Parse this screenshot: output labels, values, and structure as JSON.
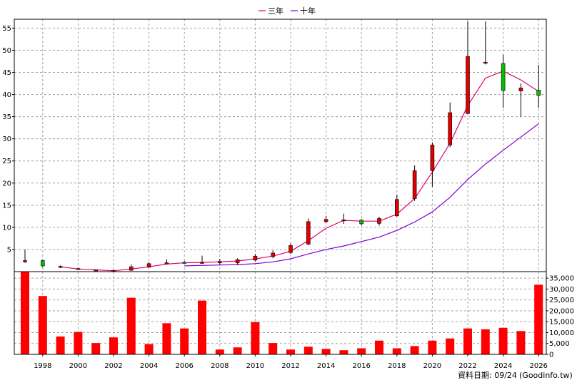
{
  "chart_data": {
    "type": "candlestick",
    "legend": [
      {
        "name": "三年",
        "color": "#e0006e"
      },
      {
        "name": "十年",
        "color": "#7a00d8"
      }
    ],
    "x_ticks": [
      "1998",
      "2000",
      "2002",
      "2004",
      "2006",
      "2008",
      "2010",
      "2012",
      "2014",
      "2016",
      "2018",
      "2020",
      "2022",
      "2024",
      "2026"
    ],
    "price_axis": {
      "ylim": [
        0,
        57
      ],
      "ticks": [
        5,
        10,
        15,
        20,
        25,
        30,
        35,
        40,
        45,
        50,
        55
      ]
    },
    "volume_axis": {
      "ylim": [
        0,
        38000
      ],
      "ticks": [
        0,
        5000,
        10000,
        15000,
        20000,
        25000,
        30000,
        35000
      ],
      "tick_labels": [
        "0",
        "5,000",
        "10,000",
        "15,000",
        "20,000",
        "25,000",
        "30,000",
        "35,000"
      ]
    },
    "colors": {
      "up": "#e00000",
      "down": "#00c000",
      "volume": "#ff0000",
      "grid": "#a0a0a0"
    },
    "candles": [
      {
        "year": 1997,
        "open": 2.2,
        "close": 2.5,
        "high": 5.0,
        "low": 2.0
      },
      {
        "year": 1998,
        "open": 2.5,
        "close": 1.3,
        "high": 2.7,
        "low": 1.0
      },
      {
        "year": 1999,
        "open": 1.0,
        "close": 1.2,
        "high": 1.4,
        "low": 0.8
      },
      {
        "year": 2000,
        "open": 0.6,
        "close": 0.7,
        "high": 0.9,
        "low": 0.5
      },
      {
        "year": 2001,
        "open": 0.3,
        "close": 0.4,
        "high": 0.5,
        "low": 0.2
      },
      {
        "year": 2002,
        "open": 0.2,
        "close": 0.3,
        "high": 0.4,
        "low": 0.1
      },
      {
        "year": 2003,
        "open": 0.3,
        "close": 1.1,
        "high": 1.6,
        "low": 0.2
      },
      {
        "year": 2004,
        "open": 1.0,
        "close": 1.8,
        "high": 2.2,
        "low": 0.9
      },
      {
        "year": 2005,
        "open": 1.9,
        "close": 2.0,
        "high": 2.8,
        "low": 1.7
      },
      {
        "year": 2006,
        "open": 2.1,
        "close": 2.0,
        "high": 2.4,
        "low": 1.9
      },
      {
        "year": 2007,
        "open": 2.0,
        "close": 2.1,
        "high": 3.6,
        "low": 1.8
      },
      {
        "year": 2008,
        "open": 2.0,
        "close": 2.3,
        "high": 2.9,
        "low": 1.5
      },
      {
        "year": 2009,
        "open": 2.0,
        "close": 2.7,
        "high": 3.0,
        "low": 1.5
      },
      {
        "year": 2010,
        "open": 2.6,
        "close": 3.5,
        "high": 4.0,
        "low": 2.3
      },
      {
        "year": 2011,
        "open": 3.4,
        "close": 4.2,
        "high": 4.8,
        "low": 3.0
      },
      {
        "year": 2012,
        "open": 4.3,
        "close": 5.9,
        "high": 6.4,
        "low": 4.0
      },
      {
        "year": 2013,
        "open": 6.2,
        "close": 11.3,
        "high": 12.0,
        "low": 6.0
      },
      {
        "year": 2014,
        "open": 11.3,
        "close": 11.8,
        "high": 12.6,
        "low": 10.9
      },
      {
        "year": 2015,
        "open": 11.6,
        "close": 11.7,
        "high": 13.1,
        "low": 10.8
      },
      {
        "year": 2016,
        "open": 11.6,
        "close": 10.8,
        "high": 11.9,
        "low": 10.5
      },
      {
        "year": 2017,
        "open": 10.9,
        "close": 12.0,
        "high": 12.4,
        "low": 10.4
      },
      {
        "year": 2018,
        "open": 12.6,
        "close": 16.3,
        "high": 17.4,
        "low": 12.4
      },
      {
        "year": 2019,
        "open": 16.5,
        "close": 22.8,
        "high": 24.0,
        "low": 16.0
      },
      {
        "year": 2020,
        "open": 22.8,
        "close": 28.6,
        "high": 29.2,
        "low": 19.2
      },
      {
        "year": 2021,
        "open": 28.6,
        "close": 35.9,
        "high": 38.2,
        "low": 28.1
      },
      {
        "year": 2022,
        "open": 35.7,
        "close": 48.6,
        "high": 56.5,
        "low": 35.6
      },
      {
        "year": 2023,
        "open": 47.1,
        "close": 47.3,
        "high": 56.5,
        "low": 46.8
      },
      {
        "year": 2024,
        "open": 47.0,
        "close": 40.9,
        "high": 49.0,
        "low": 37.0
      },
      {
        "year": 2025,
        "open": 40.8,
        "close": 41.5,
        "high": 42.5,
        "low": 35.0
      },
      {
        "year": 2026,
        "open": 41.0,
        "close": 39.8,
        "high": 46.7,
        "low": 37.0
      }
    ],
    "ma3": [
      {
        "year": 1999,
        "value": 1.1
      },
      {
        "year": 2000,
        "value": 0.6
      },
      {
        "year": 2001,
        "value": 0.4
      },
      {
        "year": 2002,
        "value": 0.2
      },
      {
        "year": 2003,
        "value": 0.6
      },
      {
        "year": 2004,
        "value": 1.1
      },
      {
        "year": 2005,
        "value": 1.7
      },
      {
        "year": 2006,
        "value": 2.0
      },
      {
        "year": 2007,
        "value": 2.1
      },
      {
        "year": 2008,
        "value": 2.2
      },
      {
        "year": 2009,
        "value": 2.4
      },
      {
        "year": 2010,
        "value": 2.9
      },
      {
        "year": 2011,
        "value": 3.5
      },
      {
        "year": 2012,
        "value": 4.6
      },
      {
        "year": 2013,
        "value": 7.0
      },
      {
        "year": 2014,
        "value": 9.8
      },
      {
        "year": 2015,
        "value": 11.6
      },
      {
        "year": 2016,
        "value": 11.4
      },
      {
        "year": 2017,
        "value": 11.4
      },
      {
        "year": 2018,
        "value": 13.0
      },
      {
        "year": 2019,
        "value": 16.5
      },
      {
        "year": 2020,
        "value": 22.5
      },
      {
        "year": 2021,
        "value": 29.0
      },
      {
        "year": 2022,
        "value": 37.5
      },
      {
        "year": 2023,
        "value": 43.7
      },
      {
        "year": 2024,
        "value": 45.3
      },
      {
        "year": 2025,
        "value": 43.3
      },
      {
        "year": 2026,
        "value": 40.7
      }
    ],
    "ma10": [
      {
        "year": 2006,
        "value": 1.3
      },
      {
        "year": 2007,
        "value": 1.4
      },
      {
        "year": 2008,
        "value": 1.5
      },
      {
        "year": 2009,
        "value": 1.6
      },
      {
        "year": 2010,
        "value": 1.8
      },
      {
        "year": 2011,
        "value": 2.2
      },
      {
        "year": 2012,
        "value": 2.9
      },
      {
        "year": 2013,
        "value": 4.0
      },
      {
        "year": 2014,
        "value": 5.0
      },
      {
        "year": 2015,
        "value": 5.8
      },
      {
        "year": 2016,
        "value": 6.8
      },
      {
        "year": 2017,
        "value": 7.8
      },
      {
        "year": 2018,
        "value": 9.3
      },
      {
        "year": 2019,
        "value": 11.2
      },
      {
        "year": 2020,
        "value": 13.5
      },
      {
        "year": 2021,
        "value": 16.8
      },
      {
        "year": 2022,
        "value": 20.8
      },
      {
        "year": 2023,
        "value": 24.3
      },
      {
        "year": 2024,
        "value": 27.4
      },
      {
        "year": 2025,
        "value": 30.4
      },
      {
        "year": 2026,
        "value": 33.4
      }
    ],
    "volume": [
      {
        "year": 1997,
        "value": 38000
      },
      {
        "year": 1998,
        "value": 26800
      },
      {
        "year": 1999,
        "value": 8200
      },
      {
        "year": 2000,
        "value": 10300
      },
      {
        "year": 2001,
        "value": 5200
      },
      {
        "year": 2002,
        "value": 7800
      },
      {
        "year": 2003,
        "value": 26000
      },
      {
        "year": 2004,
        "value": 4700
      },
      {
        "year": 2005,
        "value": 14300
      },
      {
        "year": 2006,
        "value": 11900
      },
      {
        "year": 2007,
        "value": 24700
      },
      {
        "year": 2008,
        "value": 2200
      },
      {
        "year": 2009,
        "value": 3200
      },
      {
        "year": 2010,
        "value": 14800
      },
      {
        "year": 2011,
        "value": 5200
      },
      {
        "year": 2012,
        "value": 2200
      },
      {
        "year": 2013,
        "value": 3500
      },
      {
        "year": 2014,
        "value": 2500
      },
      {
        "year": 2015,
        "value": 1900
      },
      {
        "year": 2016,
        "value": 2800
      },
      {
        "year": 2017,
        "value": 6300
      },
      {
        "year": 2018,
        "value": 2800
      },
      {
        "year": 2019,
        "value": 3800
      },
      {
        "year": 2020,
        "value": 6300
      },
      {
        "year": 2021,
        "value": 7300
      },
      {
        "year": 2022,
        "value": 11900
      },
      {
        "year": 2023,
        "value": 11500
      },
      {
        "year": 2024,
        "value": 12200
      },
      {
        "year": 2025,
        "value": 10700
      },
      {
        "year": 2026,
        "value": 32000
      }
    ]
  },
  "footer": {
    "date_text": "資料日期: 09/24",
    "source_text": "(Goodinfo.tw)"
  }
}
